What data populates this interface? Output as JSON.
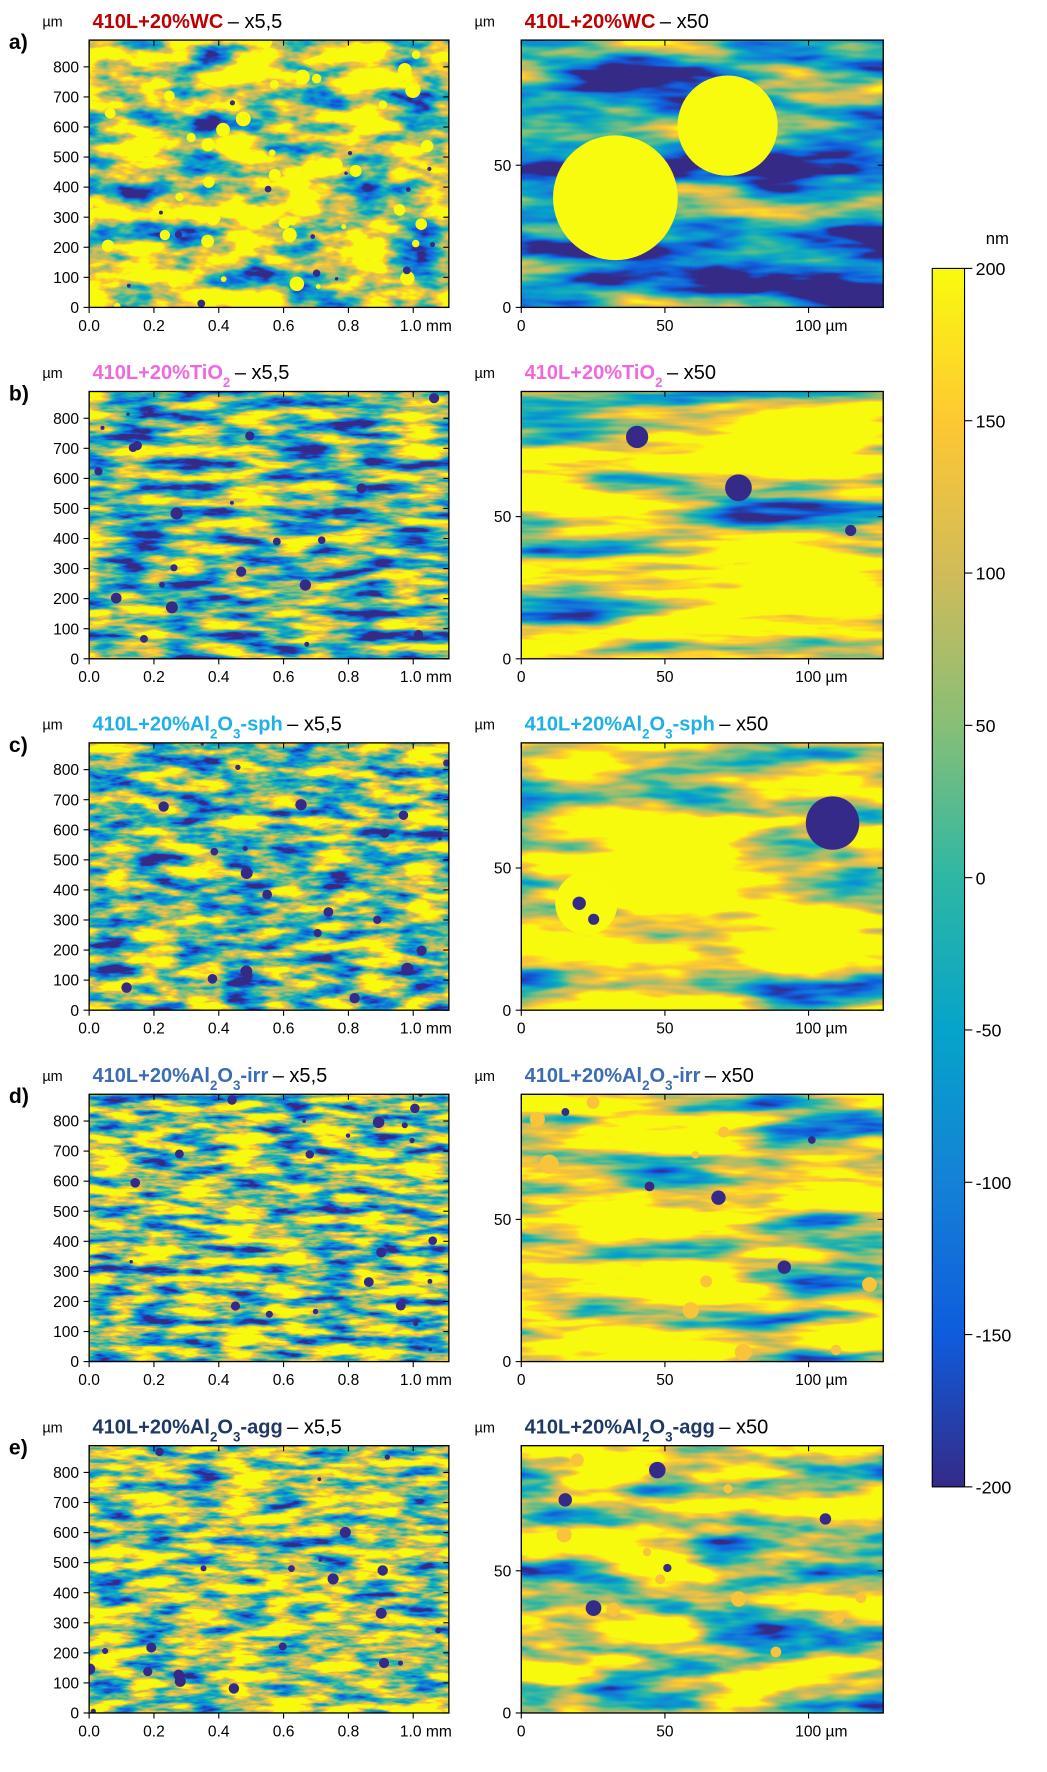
{
  "chart_data": [
    {
      "type": "image",
      "panel_label": "a)",
      "title_parts": [
        "410L+20%WC"
      ],
      "title_suffix": "– x5,5",
      "title_color": "#c00000",
      "ylabel": "µm",
      "xlim": [
        0,
        1.11
      ],
      "ylim": [
        0,
        889
      ],
      "xticks": [
        {
          "value": 0,
          "label": "0.0"
        },
        0.2,
        0.4,
        0.6,
        0.8,
        {
          "value": 1,
          "label": "1.0 mm"
        }
      ],
      "yticks": [
        0,
        100,
        200,
        300,
        400,
        500,
        600,
        700,
        800
      ]
    },
    {
      "type": "image",
      "title_parts": [
        "410L+20%WC"
      ],
      "title_suffix": "– x50",
      "title_color": "#c00000",
      "ylabel": "µm",
      "xlim": [
        0,
        126
      ],
      "ylim": [
        0,
        94
      ],
      "xticks": [
        0,
        50,
        {
          "value": 100,
          "label": "100 µm"
        }
      ],
      "yticks": [
        0,
        50
      ]
    },
    {
      "type": "image",
      "panel_label": "b)",
      "title_parts": [
        "410L+20%TiO",
        "2"
      ],
      "title_suffix": "– x5,5",
      "title_color": "#f068dc",
      "ylabel": "µm",
      "xlim": [
        0,
        1.11
      ],
      "ylim": [
        0,
        889
      ],
      "xticks": [
        {
          "value": 0,
          "label": "0.0"
        },
        0.2,
        0.4,
        0.6,
        0.8,
        {
          "value": 1,
          "label": "1.0 mm"
        }
      ],
      "yticks": [
        0,
        100,
        200,
        300,
        400,
        500,
        600,
        700,
        800
      ]
    },
    {
      "type": "image",
      "title_parts": [
        "410L+20%TiO",
        "2"
      ],
      "title_suffix": "– x50",
      "title_color": "#f068dc",
      "ylabel": "µm",
      "xlim": [
        0,
        126
      ],
      "ylim": [
        0,
        94
      ],
      "xticks": [
        0,
        50,
        {
          "value": 100,
          "label": "100 µm"
        }
      ],
      "yticks": [
        0,
        50
      ]
    },
    {
      "type": "image",
      "panel_label": "c)",
      "title_parts": [
        "410L+20%Al",
        "2",
        "O",
        "3",
        "-sph"
      ],
      "title_suffix": "– x5,5",
      "title_color": "#1fb0e6",
      "ylabel": "µm",
      "xlim": [
        0,
        1.11
      ],
      "ylim": [
        0,
        889
      ],
      "xticks": [
        {
          "value": 0,
          "label": "0.0"
        },
        0.2,
        0.4,
        0.6,
        0.8,
        {
          "value": 1,
          "label": "1.0 mm"
        }
      ],
      "yticks": [
        0,
        100,
        200,
        300,
        400,
        500,
        600,
        700,
        800
      ]
    },
    {
      "type": "image",
      "title_parts": [
        "410L+20%Al",
        "2",
        "O",
        "3",
        "-sph"
      ],
      "title_suffix": "– x50",
      "title_color": "#1fb0e6",
      "ylabel": "µm",
      "xlim": [
        0,
        126
      ],
      "ylim": [
        0,
        94
      ],
      "xticks": [
        0,
        50,
        {
          "value": 100,
          "label": "100 µm"
        }
      ],
      "yticks": [
        0,
        50
      ]
    },
    {
      "type": "image",
      "panel_label": "d)",
      "title_parts": [
        "410L+20%Al",
        "2",
        "O",
        "3",
        "-irr"
      ],
      "title_suffix": "– x5,5",
      "title_color": "#3a6db3",
      "ylabel": "µm",
      "xlim": [
        0,
        1.11
      ],
      "ylim": [
        0,
        889
      ],
      "xticks": [
        {
          "value": 0,
          "label": "0.0"
        },
        0.2,
        0.4,
        0.6,
        0.8,
        {
          "value": 1,
          "label": "1.0 mm"
        }
      ],
      "yticks": [
        0,
        100,
        200,
        300,
        400,
        500,
        600,
        700,
        800
      ]
    },
    {
      "type": "image",
      "title_parts": [
        "410L+20%Al",
        "2",
        "O",
        "3",
        "-irr"
      ],
      "title_suffix": "– x50",
      "title_color": "#3a6db3",
      "ylabel": "µm",
      "xlim": [
        0,
        126
      ],
      "ylim": [
        0,
        94
      ],
      "xticks": [
        0,
        50,
        {
          "value": 100,
          "label": "100 µm"
        }
      ],
      "yticks": [
        0,
        50
      ]
    },
    {
      "type": "image",
      "panel_label": "e)",
      "title_parts": [
        "410L+20%Al",
        "2",
        "O",
        "3",
        "-agg"
      ],
      "title_suffix": "– x5,5",
      "title_color": "#1f3864",
      "ylabel": "µm",
      "xlim": [
        0,
        1.11
      ],
      "ylim": [
        0,
        889
      ],
      "xticks": [
        {
          "value": 0,
          "label": "0.0"
        },
        0.2,
        0.4,
        0.6,
        0.8,
        {
          "value": 1,
          "label": "1.0 mm"
        }
      ],
      "yticks": [
        0,
        100,
        200,
        300,
        400,
        500,
        600,
        700,
        800
      ]
    },
    {
      "type": "image",
      "title_parts": [
        "410L+20%Al",
        "2",
        "O",
        "3",
        "-agg"
      ],
      "title_suffix": "– x50",
      "title_color": "#1f3864",
      "ylabel": "µm",
      "xlim": [
        0,
        126
      ],
      "ylim": [
        0,
        94
      ],
      "xticks": [
        0,
        50,
        {
          "value": 100,
          "label": "100 µm"
        }
      ],
      "yticks": [
        0,
        50
      ]
    },
    {
      "type": "colorbar",
      "label": "nm",
      "ylim": [
        -200,
        200
      ],
      "yticks": [
        -200,
        -150,
        -100,
        -50,
        0,
        50,
        100,
        150,
        200
      ],
      "colors": [
        "#352a87",
        "#0f5cdd",
        "#1481d6",
        "#06a4ca",
        "#2eb7a4",
        "#87bf77",
        "#d1bb59",
        "#fec832",
        "#f9fb0e"
      ]
    }
  ]
}
